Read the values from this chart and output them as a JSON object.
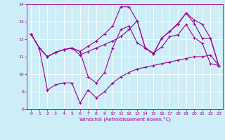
{
  "xlabel": "Windchill (Refroidissement éolien,°C)",
  "background_color": "#cdeef7",
  "line_color": "#990099",
  "grid_color": "#ffffff",
  "xlim": [
    -0.5,
    23.5
  ],
  "ylim": [
    8,
    14
  ],
  "yticks": [
    8,
    9,
    10,
    11,
    12,
    13,
    14
  ],
  "xticks": [
    0,
    1,
    2,
    3,
    4,
    5,
    6,
    7,
    8,
    9,
    10,
    11,
    12,
    13,
    14,
    15,
    16,
    17,
    18,
    19,
    20,
    21,
    22,
    23
  ],
  "series": [
    [
      12.3,
      11.5,
      11.0,
      11.25,
      11.4,
      11.5,
      11.1,
      11.3,
      11.5,
      11.7,
      11.9,
      12.15,
      12.55,
      13.05,
      11.5,
      11.15,
      12.05,
      12.45,
      12.85,
      13.5,
      12.9,
      12.05,
      12.05,
      10.5
    ],
    [
      12.3,
      11.5,
      11.0,
      11.25,
      11.4,
      11.5,
      11.3,
      11.6,
      11.9,
      12.3,
      12.75,
      13.85,
      13.85,
      13.05,
      11.5,
      11.15,
      12.05,
      12.45,
      12.9,
      13.5,
      13.1,
      12.85,
      12.05,
      10.5
    ],
    [
      12.3,
      11.5,
      11.0,
      11.25,
      11.4,
      11.5,
      11.3,
      9.85,
      9.5,
      10.1,
      11.5,
      12.55,
      12.75,
      11.8,
      11.5,
      11.2,
      11.55,
      12.15,
      12.25,
      12.85,
      12.1,
      11.75,
      10.6,
      10.5
    ],
    [
      12.3,
      11.5,
      9.1,
      9.4,
      9.5,
      9.5,
      8.35,
      9.1,
      8.65,
      9.0,
      9.5,
      9.85,
      10.1,
      10.3,
      10.4,
      10.5,
      10.6,
      10.7,
      10.8,
      10.9,
      11.0,
      11.0,
      11.1,
      10.5
    ]
  ]
}
